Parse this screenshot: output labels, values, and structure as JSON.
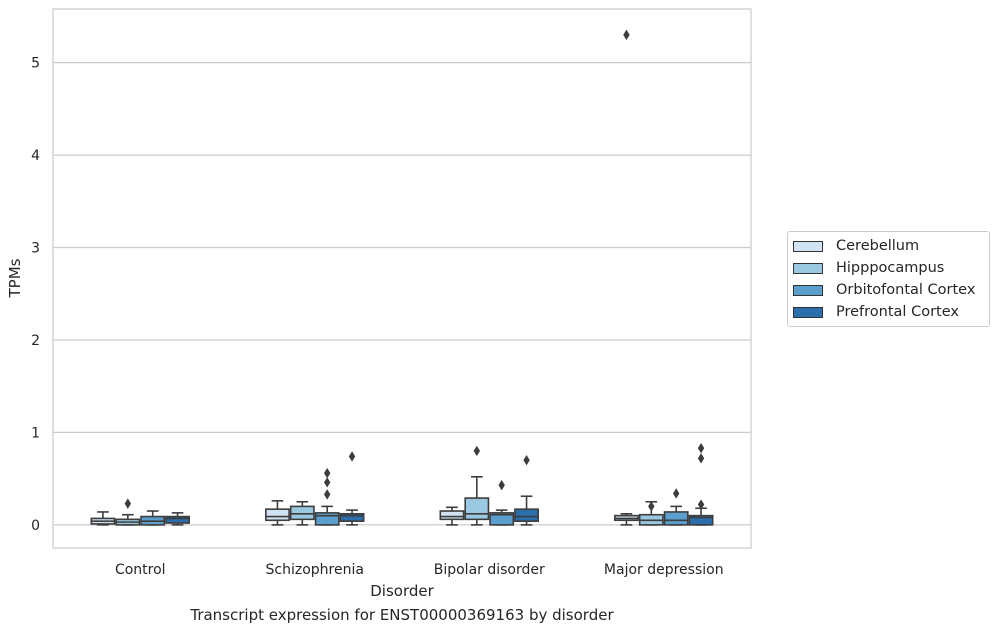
{
  "chart_data": {
    "type": "box",
    "title": "Transcript expression for ENST00000369163 by disorder",
    "xlabel": "Disorder",
    "ylabel": "TPMs",
    "ylim": [
      -0.25,
      5.58
    ],
    "yticks": [
      0,
      1,
      2,
      3,
      4,
      5
    ],
    "grid": "horizontal",
    "legend_position": "right",
    "categories": [
      "Control",
      "Schizophrenia",
      "Bipolar disorder",
      "Major depression"
    ],
    "series": [
      {
        "name": "Cerebellum",
        "color": "#d1e3f3",
        "boxes": [
          {
            "whislo": 0.0,
            "q1": 0.01,
            "med": 0.04,
            "q3": 0.07,
            "whishi": 0.14,
            "fliers": []
          },
          {
            "whislo": 0.0,
            "q1": 0.05,
            "med": 0.09,
            "q3": 0.17,
            "whishi": 0.26,
            "fliers": []
          },
          {
            "whislo": 0.0,
            "q1": 0.06,
            "med": 0.09,
            "q3": 0.15,
            "whishi": 0.19,
            "fliers": []
          },
          {
            "whislo": 0.0,
            "q1": 0.05,
            "med": 0.07,
            "q3": 0.1,
            "whishi": 0.12,
            "fliers": [
              5.3
            ]
          }
        ]
      },
      {
        "name": "Hipppocampus",
        "color": "#9ac8e0",
        "boxes": [
          {
            "whislo": 0.0,
            "q1": 0.0,
            "med": 0.03,
            "q3": 0.06,
            "whishi": 0.11,
            "fliers": [
              0.23
            ]
          },
          {
            "whislo": 0.0,
            "q1": 0.06,
            "med": 0.12,
            "q3": 0.2,
            "whishi": 0.25,
            "fliers": []
          },
          {
            "whislo": 0.0,
            "q1": 0.06,
            "med": 0.12,
            "q3": 0.29,
            "whishi": 0.52,
            "fliers": [
              0.8
            ]
          },
          {
            "whislo": 0.0,
            "q1": 0.0,
            "med": 0.05,
            "q3": 0.11,
            "whishi": 0.25,
            "fliers": [
              0.2
            ]
          }
        ]
      },
      {
        "name": "Orbitofontal Cortex",
        "color": "#5a9fcd",
        "boxes": [
          {
            "whislo": 0.0,
            "q1": 0.0,
            "med": 0.04,
            "q3": 0.09,
            "whishi": 0.15,
            "fliers": []
          },
          {
            "whislo": 0.0,
            "q1": 0.0,
            "med": 0.1,
            "q3": 0.13,
            "whishi": 0.2,
            "fliers": [
              0.33,
              0.46,
              0.56
            ]
          },
          {
            "whislo": 0.0,
            "q1": 0.0,
            "med": 0.11,
            "q3": 0.13,
            "whishi": 0.16,
            "fliers": [
              0.43
            ]
          },
          {
            "whislo": 0.0,
            "q1": 0.0,
            "med": 0.05,
            "q3": 0.14,
            "whishi": 0.2,
            "fliers": [
              0.34
            ]
          }
        ]
      },
      {
        "name": "Prefrontal Cortex",
        "color": "#2a6fac",
        "boxes": [
          {
            "whislo": 0.0,
            "q1": 0.02,
            "med": 0.07,
            "q3": 0.09,
            "whishi": 0.13,
            "fliers": []
          },
          {
            "whislo": 0.0,
            "q1": 0.04,
            "med": 0.1,
            "q3": 0.12,
            "whishi": 0.16,
            "fliers": [
              0.74
            ]
          },
          {
            "whislo": 0.0,
            "q1": 0.04,
            "med": 0.09,
            "q3": 0.17,
            "whishi": 0.31,
            "fliers": [
              0.7
            ]
          },
          {
            "whislo": 0.0,
            "q1": 0.0,
            "med": 0.08,
            "q3": 0.1,
            "whishi": 0.18,
            "fliers": [
              0.72,
              0.83,
              0.22
            ]
          }
        ]
      }
    ]
  }
}
